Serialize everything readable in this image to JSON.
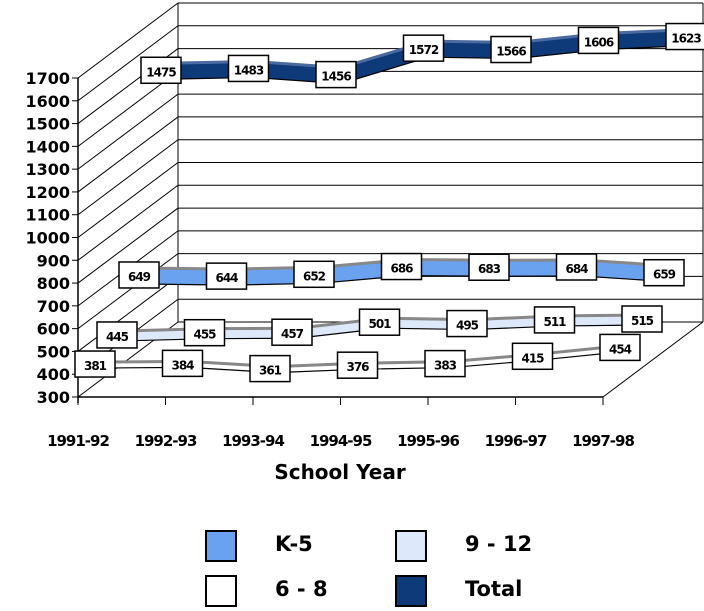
{
  "chart_data": {
    "type": "line",
    "style": "3d-ribbon",
    "categories": [
      "1991-92",
      "1992-93",
      "1993-94",
      "1994-95",
      "1995-96",
      "1996-97",
      "1997-98"
    ],
    "xlabel": "School Year",
    "ylabel": "",
    "ylim": [
      300,
      1700
    ],
    "yticks": [
      300,
      400,
      500,
      600,
      700,
      800,
      900,
      1000,
      1100,
      1200,
      1300,
      1400,
      1500,
      1600,
      1700
    ],
    "series": [
      {
        "name": "6 - 8",
        "color": "#ffffff",
        "values": [
          381,
          384,
          361,
          376,
          383,
          415,
          454
        ],
        "labels": [
          "381",
          "384",
          "361",
          "376",
          "383",
          "415",
          "454"
        ]
      },
      {
        "name": "9 - 12",
        "color": "#dde8fa",
        "values": [
          445,
          455,
          457,
          501,
          495,
          511,
          515
        ],
        "labels": [
          "445",
          "455",
          "457",
          "501",
          "495",
          "511",
          "515"
        ]
      },
      {
        "name": "K-5",
        "color": "#6aa2f0",
        "values": [
          649,
          644,
          652,
          686,
          683,
          684,
          659
        ],
        "labels": [
          "649",
          "644",
          "652",
          "686",
          "683",
          "684",
          "659"
        ]
      },
      {
        "name": "Total",
        "color": "#0f3a7a",
        "values": [
          1475,
          1483,
          1456,
          1572,
          1566,
          1606,
          1623
        ],
        "labels": [
          "1475",
          "1483",
          "1456",
          "1572",
          "1566",
          "1606",
          "1623"
        ]
      }
    ],
    "grid": true,
    "legend_position": "bottom"
  },
  "legend": {
    "items": [
      {
        "label": "K-5",
        "color": "#6aa2f0"
      },
      {
        "label": "9 - 12",
        "color": "#dde8fa"
      },
      {
        "label": "6 - 8",
        "color": "#ffffff"
      },
      {
        "label": "Total",
        "color": "#0f3a7a"
      }
    ]
  }
}
